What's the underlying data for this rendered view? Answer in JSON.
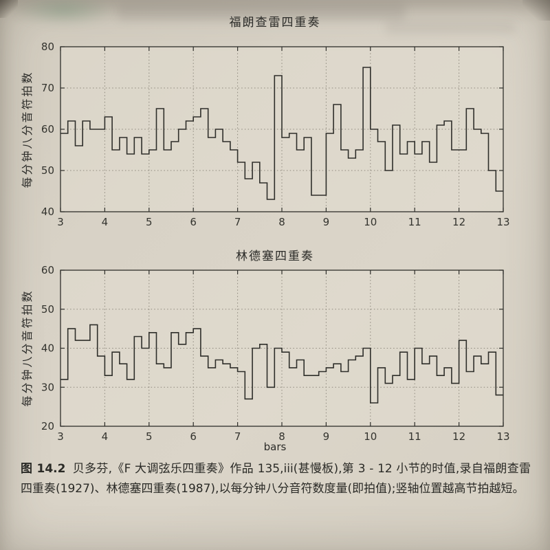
{
  "page": {
    "figure_label": "图 14.2",
    "caption_text": "贝多芬,《F 大调弦乐四重奏》作品 135,iii(甚慢板),第 3 - 12 小节的时值,录自福朗查雷四重奏(1927)、林德塞四重奏(1987),以每分钟八分音符数度量(即拍值);竖轴位置越高节拍越短。"
  },
  "chart_data": [
    {
      "type": "line",
      "subtype": "step",
      "title": "福朗查雷四重奏",
      "ylabel": "每分钟八分音符拍数",
      "xlabel": "",
      "xlim": [
        3,
        13
      ],
      "ylim": [
        40,
        80
      ],
      "xticks": [
        3,
        4,
        5,
        6,
        7,
        8,
        9,
        10,
        11,
        12,
        13
      ],
      "yticks": [
        40,
        50,
        60,
        70,
        80
      ],
      "grid": true,
      "x_start_bar": 3,
      "steps_per_bar": 6,
      "values": [
        59,
        62,
        56,
        62,
        60,
        60,
        63,
        55,
        58,
        54,
        58,
        54,
        55,
        65,
        55,
        57,
        60,
        62,
        63,
        65,
        58,
        60,
        57,
        55,
        52,
        48,
        52,
        47,
        43,
        73,
        58,
        59,
        55,
        58,
        44,
        44,
        59,
        66,
        55,
        53,
        55,
        75,
        60,
        57,
        50,
        61,
        54,
        57,
        54,
        57,
        52,
        61,
        62,
        55,
        55,
        65,
        60,
        59,
        50,
        45
      ]
    },
    {
      "type": "line",
      "subtype": "step",
      "title": "林德塞四重奏",
      "ylabel": "每分钟八分音符拍数",
      "xlabel": "bars",
      "xlim": [
        3,
        13
      ],
      "ylim": [
        20,
        60
      ],
      "xticks": [
        3,
        4,
        5,
        6,
        7,
        8,
        9,
        10,
        11,
        12,
        13
      ],
      "yticks": [
        20,
        30,
        40,
        50,
        60
      ],
      "grid": true,
      "x_start_bar": 3,
      "steps_per_bar": 6,
      "values": [
        32,
        45,
        42,
        42,
        46,
        38,
        33,
        39,
        36,
        32,
        43,
        40,
        44,
        36,
        35,
        44,
        41,
        44,
        45,
        38,
        35,
        37,
        36,
        35,
        34,
        27,
        40,
        41,
        30,
        40,
        39,
        35,
        37,
        33,
        33,
        34,
        35,
        36,
        34,
        37,
        38,
        40,
        26,
        35,
        31,
        33,
        39,
        32,
        40,
        36,
        38,
        33,
        35,
        31,
        42,
        34,
        38,
        36,
        39,
        28
      ]
    }
  ]
}
